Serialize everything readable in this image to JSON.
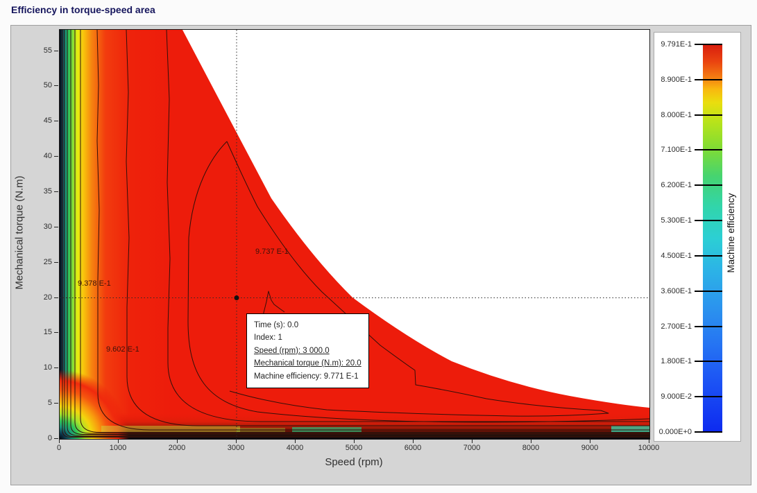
{
  "title": "Efficiency in torque-speed area",
  "plot": {
    "xlabel": "Speed (rpm)",
    "ylabel": "Mechanical torque (N.m)",
    "x_ticks": [
      "0",
      "1000",
      "2000",
      "3000",
      "4000",
      "5000",
      "6000",
      "7000",
      "8000",
      "9000",
      "10000"
    ],
    "y_ticks": [
      "0",
      "5",
      "10",
      "15",
      "20",
      "25",
      "30",
      "35",
      "40",
      "45",
      "50",
      "55"
    ],
    "x_max": 10000,
    "y_axis_top": 58
  },
  "colorbar": {
    "label": "Machine efficiency",
    "ticks": [
      "9.791E-1",
      "8.900E-1",
      "8.000E-1",
      "7.100E-1",
      "6.200E-1",
      "5.300E-1",
      "4.500E-1",
      "3.600E-1",
      "2.700E-1",
      "1.800E-1",
      "9.000E-2",
      "0.000E+0"
    ]
  },
  "contour_labels": [
    {
      "text": "9.378 E-1",
      "speed_rpm": 318,
      "torque_nm": 22.5
    },
    {
      "text": "9.602 E-1",
      "speed_rpm": 800,
      "torque_nm": 13.2
    },
    {
      "text": "9.737 E-1",
      "speed_rpm": 3330,
      "torque_nm": 27.0
    }
  ],
  "crosshair": {
    "speed_rpm": 3000,
    "torque_nm": 20
  },
  "tooltip": {
    "lines": [
      {
        "text": "Time (s): 0.0",
        "underline": false
      },
      {
        "text": "Index: 1",
        "underline": false
      },
      {
        "text": "Speed (rpm): 3 000.0",
        "underline": true
      },
      {
        "text": "Mechanical torque (N.m): 20.0",
        "underline": true
      },
      {
        "text": "Machine efficiency: 9.771 E-1",
        "underline": false
      }
    ]
  },
  "colors": {
    "field_red": "#ed1c0b",
    "title_navy": "#15155c",
    "contour_line": "#30100a",
    "colorbar_top": "#d81d0e",
    "colorbar_bottom": "#0d2af0"
  },
  "chart_data": {
    "type": "contour",
    "title": "Efficiency in torque-speed area",
    "xlabel": "Speed (rpm)",
    "ylabel": "Mechanical torque (N.m)",
    "zlabel": "Machine efficiency",
    "xlim": [
      0,
      10000
    ],
    "ylim": [
      0,
      58
    ],
    "zlim": [
      0.0,
      0.9791
    ],
    "grid": false,
    "legend_position": "right-colorbar",
    "colorbar_tick_values": [
      0.9791,
      0.89,
      0.8,
      0.71,
      0.62,
      0.53,
      0.45,
      0.36,
      0.27,
      0.18,
      0.09,
      0.0
    ],
    "labeled_contour_levels": [
      0.9378,
      0.9602,
      0.9737
    ],
    "max_torque_envelope_points": [
      [
        0,
        58
      ],
      [
        2080,
        58
      ],
      [
        3000,
        43
      ],
      [
        3600,
        34
      ],
      [
        4300,
        27
      ],
      [
        5000,
        20
      ],
      [
        5900,
        15
      ],
      [
        6800,
        10.7
      ],
      [
        7700,
        8.2
      ],
      [
        8400,
        6.6
      ],
      [
        9300,
        5.3
      ],
      [
        10000,
        4.4
      ]
    ],
    "high_efficiency_peak_region": {
      "level": 0.9737,
      "peak": [
        2835,
        42
      ]
    },
    "marked_point": {
      "time_s": 0.0,
      "index": 1,
      "speed_rpm": 3000,
      "torque_nm": 20.0,
      "efficiency": 0.9771
    }
  }
}
